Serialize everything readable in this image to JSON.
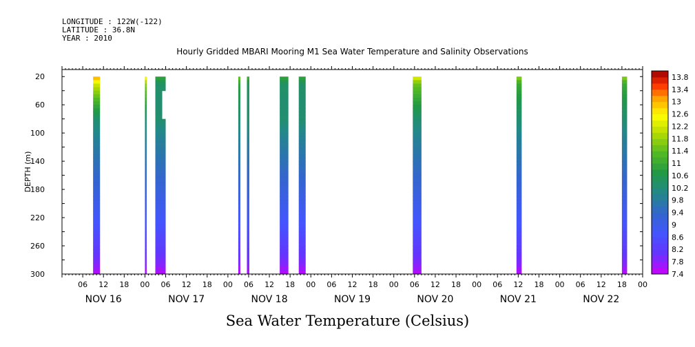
{
  "header": {
    "longitude": "LONGITUDE : 122W(-122)",
    "latitude": "LATITUDE : 36.8N",
    "year": "YEAR : 2010"
  },
  "plot_title": "Hourly Gridded MBARI Mooring M1 Sea Water Temperature and Salinity Observations",
  "footer_title": "Sea Water Temperature (Celsius)",
  "chart_data": {
    "type": "heatmap",
    "title": "Hourly Gridded MBARI Mooring M1 Sea Water Temperature and Salinity Observations",
    "ylabel": "DEPTH (m)",
    "xlabel": "",
    "variable": "Sea Water Temperature (Celsius)",
    "x_unit": "hours since 2010-11-16 00:00",
    "xlim": [
      0,
      168
    ],
    "ylim": [
      300,
      10
    ],
    "y_inverted": true,
    "x_hour_ticks": [
      6,
      12,
      18,
      24,
      30,
      36,
      42,
      48,
      54,
      60,
      66,
      72,
      78,
      84,
      90,
      96,
      102,
      108,
      114,
      120,
      126,
      132,
      138,
      144,
      150,
      156,
      162,
      168
    ],
    "x_hour_tick_labels": [
      "06",
      "12",
      "18",
      "00",
      "06",
      "12",
      "18",
      "00",
      "06",
      "12",
      "18",
      "00",
      "06",
      "12",
      "18",
      "00",
      "06",
      "12",
      "18",
      "00",
      "06",
      "12",
      "18",
      "00",
      "06",
      "12",
      "18",
      "00"
    ],
    "x_day_labels": [
      {
        "hour": 12,
        "label": "NOV 16"
      },
      {
        "hour": 36,
        "label": "NOV 17"
      },
      {
        "hour": 60,
        "label": "NOV 18"
      },
      {
        "hour": 84,
        "label": "NOV 19"
      },
      {
        "hour": 108,
        "label": "NOV 20"
      },
      {
        "hour": 132,
        "label": "NOV 21"
      },
      {
        "hour": 156,
        "label": "NOV 22"
      }
    ],
    "y_ticks": [
      20,
      60,
      100,
      140,
      180,
      220,
      260,
      300
    ],
    "colorbar": {
      "min": 7.4,
      "max": 14.0,
      "step": 0.2,
      "labels": [
        "13.8",
        "13.4",
        "13",
        "12.6",
        "12.2",
        "11.8",
        "11.4",
        "11",
        "10.6",
        "10.2",
        "9.8",
        "9.4",
        "9",
        "8.6",
        "8.2",
        "7.8",
        "7.4"
      ],
      "label_values": [
        13.8,
        13.4,
        13.0,
        12.6,
        12.2,
        11.8,
        11.4,
        11.0,
        10.6,
        10.2,
        9.8,
        9.4,
        9.0,
        8.6,
        8.2,
        7.8,
        7.4
      ],
      "colormap": "rainbow (violet low to dark red high)"
    },
    "depth_profiles": [
      {
        "depth": 20,
        "value": 12.0
      },
      {
        "depth": 30,
        "value": 11.2
      },
      {
        "depth": 60,
        "value": 10.6
      },
      {
        "depth": 100,
        "value": 10.0
      },
      {
        "depth": 140,
        "value": 9.6
      },
      {
        "depth": 180,
        "value": 9.2
      },
      {
        "depth": 220,
        "value": 8.8
      },
      {
        "depth": 260,
        "value": 8.3
      },
      {
        "depth": 290,
        "value": 7.8
      },
      {
        "depth": 300,
        "value": 7.5
      }
    ],
    "observation_columns": [
      {
        "x_start": 9.0,
        "x_end": 11.0,
        "surface_value": 13.2,
        "depth_min": 20,
        "depth_max": 300
      },
      {
        "x_start": 24.0,
        "x_end": 24.5,
        "surface_value": 12.6,
        "depth_min": 20,
        "depth_max": 300
      },
      {
        "x_start": 27.0,
        "x_end": 30.0,
        "surface_value": 11.0,
        "depth_min": 20,
        "depth_max": 300,
        "gap_depth_range": [
          40,
          78
        ],
        "gap_x_start": 29.0
      },
      {
        "x_start": 51.0,
        "x_end": 51.6,
        "surface_value": 11.6,
        "depth_min": 20,
        "depth_max": 300
      },
      {
        "x_start": 53.5,
        "x_end": 54.2,
        "surface_value": 11.2,
        "depth_min": 20,
        "depth_max": 300
      },
      {
        "x_start": 63.0,
        "x_end": 65.5,
        "surface_value": 11.0,
        "depth_min": 20,
        "depth_max": 300
      },
      {
        "x_start": 68.5,
        "x_end": 70.5,
        "surface_value": 11.0,
        "depth_min": 20,
        "depth_max": 300
      },
      {
        "x_start": 101.5,
        "x_end": 104.0,
        "surface_value": 12.4,
        "depth_min": 20,
        "depth_max": 300
      },
      {
        "x_start": 131.5,
        "x_end": 133.0,
        "surface_value": 11.8,
        "depth_min": 20,
        "depth_max": 300
      },
      {
        "x_start": 162.0,
        "x_end": 163.5,
        "surface_value": 11.8,
        "depth_min": 20,
        "depth_max": 300
      }
    ]
  }
}
